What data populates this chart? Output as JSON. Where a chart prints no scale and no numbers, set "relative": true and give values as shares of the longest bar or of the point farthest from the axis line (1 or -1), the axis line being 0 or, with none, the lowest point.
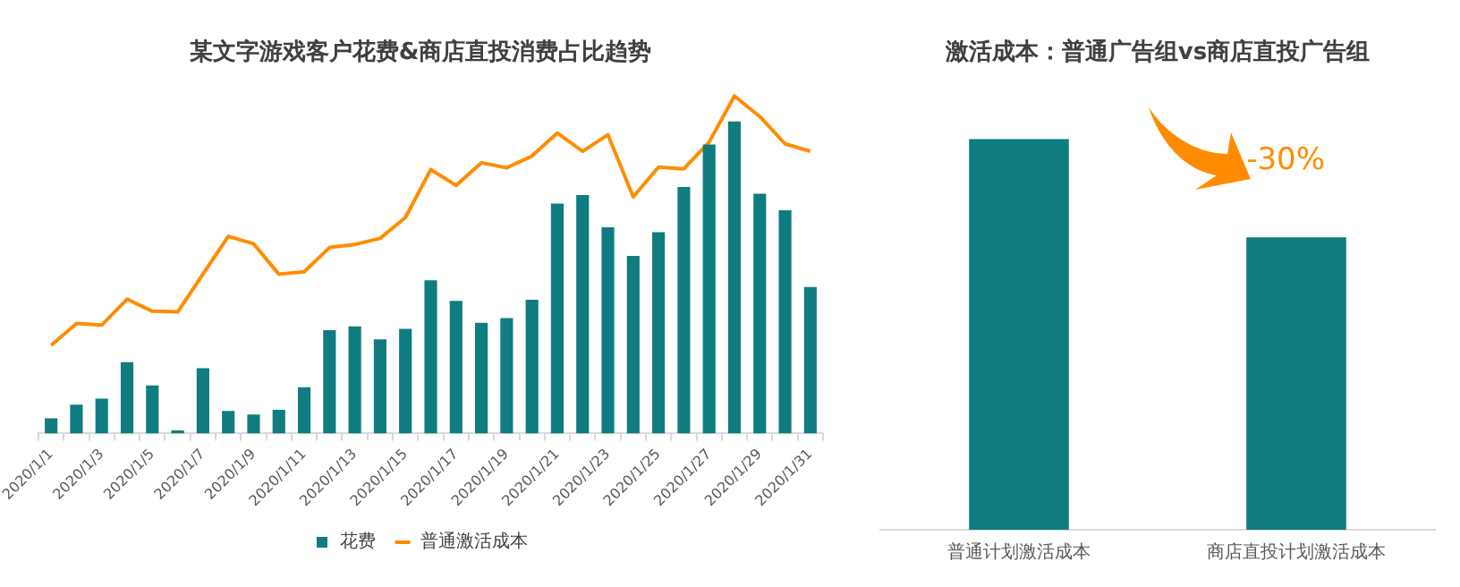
{
  "chart_data": [
    {
      "type": "bar",
      "title": "某文字游戏客户花费&商店直投消费占比趋势",
      "relative": true,
      "legend": "bottom",
      "categories": [
        "2020/1/1",
        null,
        "2020/1/3",
        null,
        "2020/1/5",
        null,
        "2020/1/7",
        null,
        "2020/1/9",
        null,
        "2020/1/11",
        null,
        "2020/1/13",
        null,
        "2020/1/15",
        null,
        "2020/1/17",
        null,
        "2020/1/19",
        null,
        "2020/1/21",
        null,
        "2020/1/23",
        null,
        "2020/1/25",
        null,
        "2020/1/27",
        null,
        "2020/1/29",
        null,
        "2020/1/31"
      ],
      "series": [
        {
          "name": "花费",
          "color": "#0f7c80",
          "values": [
            0.045,
            0.085,
            0.103,
            0.211,
            0.142,
            0.009,
            0.193,
            0.067,
            0.056,
            0.07,
            0.137,
            0.306,
            0.317,
            0.279,
            0.31,
            0.454,
            0.393,
            0.328,
            0.342,
            0.396,
            0.681,
            0.706,
            0.611,
            0.526,
            0.596,
            0.73,
            0.856,
            0.924,
            0.71,
            0.661,
            0.434
          ]
        },
        {
          "name": "普通激活成本",
          "type": "line",
          "color": "#ff8c00",
          "values": [
            0.261,
            0.326,
            0.321,
            0.398,
            0.362,
            0.36,
            0.472,
            0.584,
            0.562,
            0.472,
            0.479,
            0.551,
            0.56,
            0.578,
            0.64,
            0.782,
            0.735,
            0.802,
            0.787,
            0.822,
            0.89,
            0.836,
            0.885,
            0.701,
            0.789,
            0.784,
            0.863,
            1,
            0.939,
            0.858,
            0.836
          ]
        }
      ]
    },
    {
      "type": "bar",
      "title": "激活成本：普通广告组vs商店直投广告组",
      "relative": true,
      "categories": [
        "普通计划激活成本",
        "商店直投计划激活成本"
      ],
      "values": [
        1,
        0.748
      ],
      "color": "#0f7c80",
      "annotations": [
        "-30%"
      ]
    }
  ]
}
